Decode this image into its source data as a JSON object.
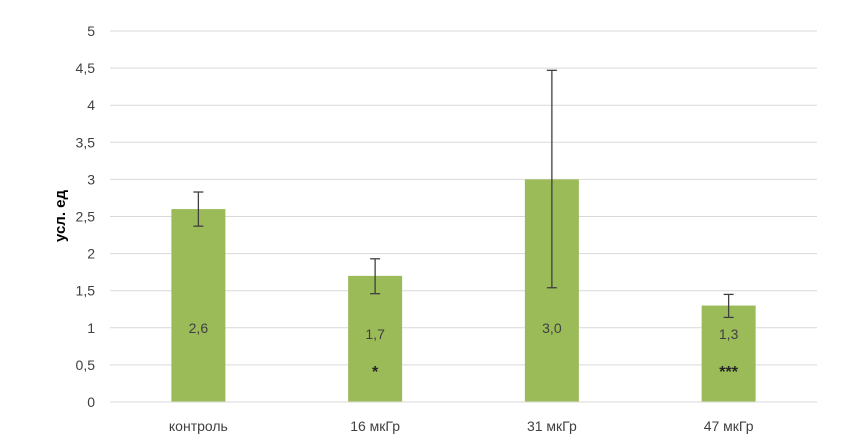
{
  "chart_data": {
    "type": "bar",
    "title": "",
    "xlabel": "",
    "ylabel": "усл. ед",
    "ylim": [
      0,
      5
    ],
    "yticks": [
      0,
      0.5,
      1,
      1.5,
      2,
      2.5,
      3,
      3.5,
      4,
      4.5,
      5
    ],
    "ytick_labels": [
      "0",
      "0,5",
      "1",
      "1,5",
      "2",
      "2,5",
      "3",
      "3,5",
      "4",
      "4,5",
      "5"
    ],
    "grid": true,
    "legend": "none",
    "bar_color": "#9bbb59",
    "categories": [
      "контроль",
      "16 мкГр",
      "31 мкГр",
      "47 мкГр"
    ],
    "values": [
      2.6,
      1.7,
      3.0,
      1.3
    ],
    "data_labels": [
      "2,6",
      "1,7",
      "3,0",
      "1,3"
    ],
    "error_low": [
      2.37,
      1.46,
      1.54,
      1.14
    ],
    "error_high": [
      2.83,
      1.93,
      4.47,
      1.45
    ],
    "significance": [
      "",
      "*",
      "",
      "***"
    ]
  }
}
